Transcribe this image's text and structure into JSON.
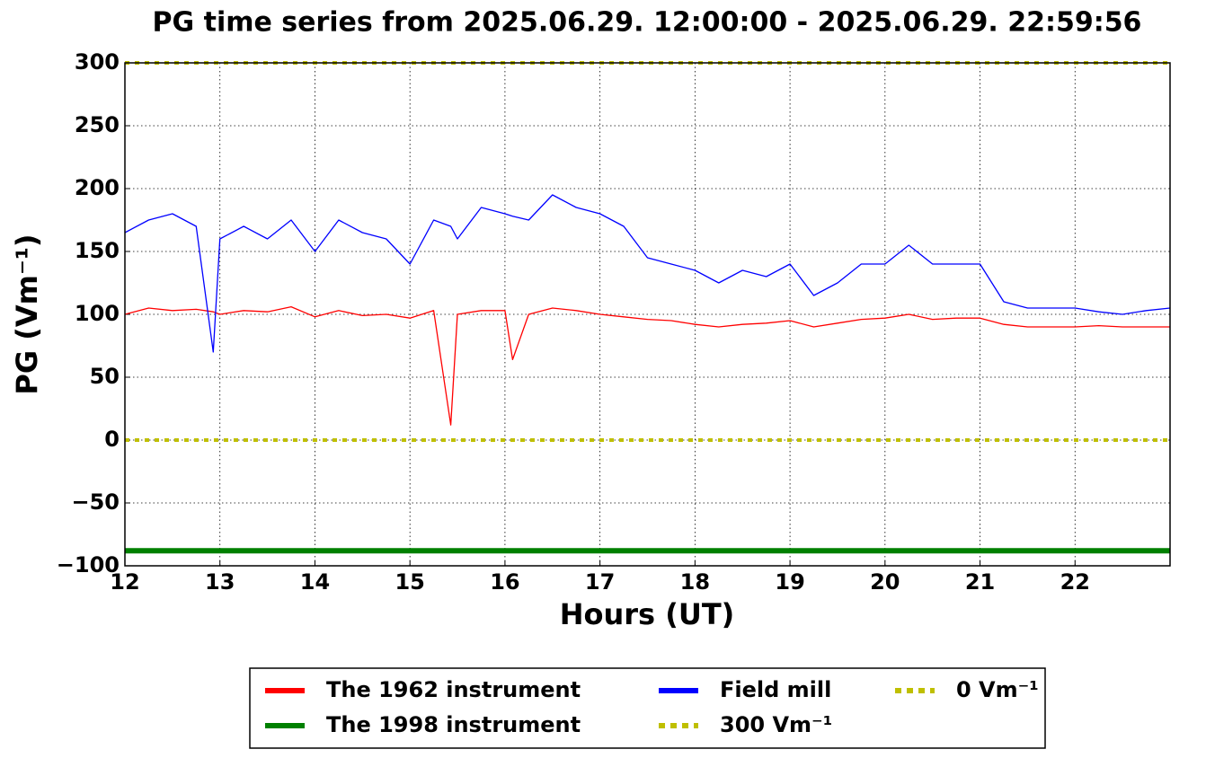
{
  "chart_data": {
    "type": "line",
    "title": "PG time series from 2025.06.29. 12:00:00 - 2025.06.29. 22:59:56",
    "xlabel": "Hours (UT)",
    "ylabel": "PG (Vm⁻¹)",
    "xlim": [
      12,
      23
    ],
    "ylim": [
      -100,
      300
    ],
    "xticks": [
      12,
      13,
      14,
      15,
      16,
      17,
      18,
      19,
      20,
      21,
      22
    ],
    "yticks": [
      {
        "value": -100,
        "label": "−100"
      },
      {
        "value": -50,
        "label": "−50"
      },
      0,
      50,
      100,
      150,
      200,
      250,
      300
    ],
    "grid": true,
    "legend": "bottom",
    "x": [
      12,
      12.25,
      12.5,
      12.75,
      12.93,
      13,
      13.25,
      13.5,
      13.75,
      14,
      14.25,
      14.5,
      14.75,
      15,
      15.25,
      15.43,
      15.5,
      15.75,
      16,
      16.08,
      16.25,
      16.5,
      16.75,
      17,
      17.25,
      17.5,
      17.75,
      18,
      18.25,
      18.5,
      18.75,
      19,
      19.25,
      19.5,
      19.75,
      20,
      20.25,
      20.5,
      20.75,
      21,
      21.25,
      21.5,
      21.75,
      22,
      22.25,
      22.5,
      22.75,
      23
    ],
    "series": [
      {
        "name": "The 1962 instrument",
        "color": "#ff0000",
        "values": [
          100,
          105,
          103,
          104,
          102,
          100,
          103,
          102,
          106,
          98,
          103,
          99,
          100,
          97,
          103,
          12,
          100,
          103,
          103,
          64,
          100,
          105,
          103,
          100,
          98,
          96,
          95,
          92,
          90,
          92,
          93,
          95,
          90,
          93,
          96,
          97,
          100,
          96,
          97,
          97,
          92,
          90,
          90,
          90,
          91,
          90,
          90,
          90
        ]
      },
      {
        "name": "The 1998 instrument",
        "color": "#008000",
        "x": [
          12,
          23
        ],
        "values": [
          -88,
          -88
        ],
        "width": 6
      },
      {
        "name": "Field mill",
        "color": "#0000ff",
        "values": [
          165,
          175,
          180,
          170,
          70,
          160,
          170,
          160,
          175,
          150,
          175,
          165,
          160,
          140,
          175,
          170,
          160,
          185,
          180,
          178,
          175,
          195,
          185,
          180,
          170,
          145,
          140,
          135,
          125,
          135,
          130,
          140,
          115,
          125,
          140,
          140,
          155,
          140,
          140,
          140,
          110,
          105,
          105,
          105,
          102,
          100,
          103,
          105
        ]
      },
      {
        "name": "300 Vm⁻¹",
        "color": "#bfbf00",
        "x": [
          12,
          23
        ],
        "values": [
          300,
          300
        ],
        "width": 4,
        "dotted": true
      },
      {
        "name": "0 Vm⁻¹",
        "color": "#bfbf00",
        "x": [
          12,
          23
        ],
        "values": [
          0,
          0
        ],
        "width": 4,
        "dotted": true
      }
    ]
  }
}
